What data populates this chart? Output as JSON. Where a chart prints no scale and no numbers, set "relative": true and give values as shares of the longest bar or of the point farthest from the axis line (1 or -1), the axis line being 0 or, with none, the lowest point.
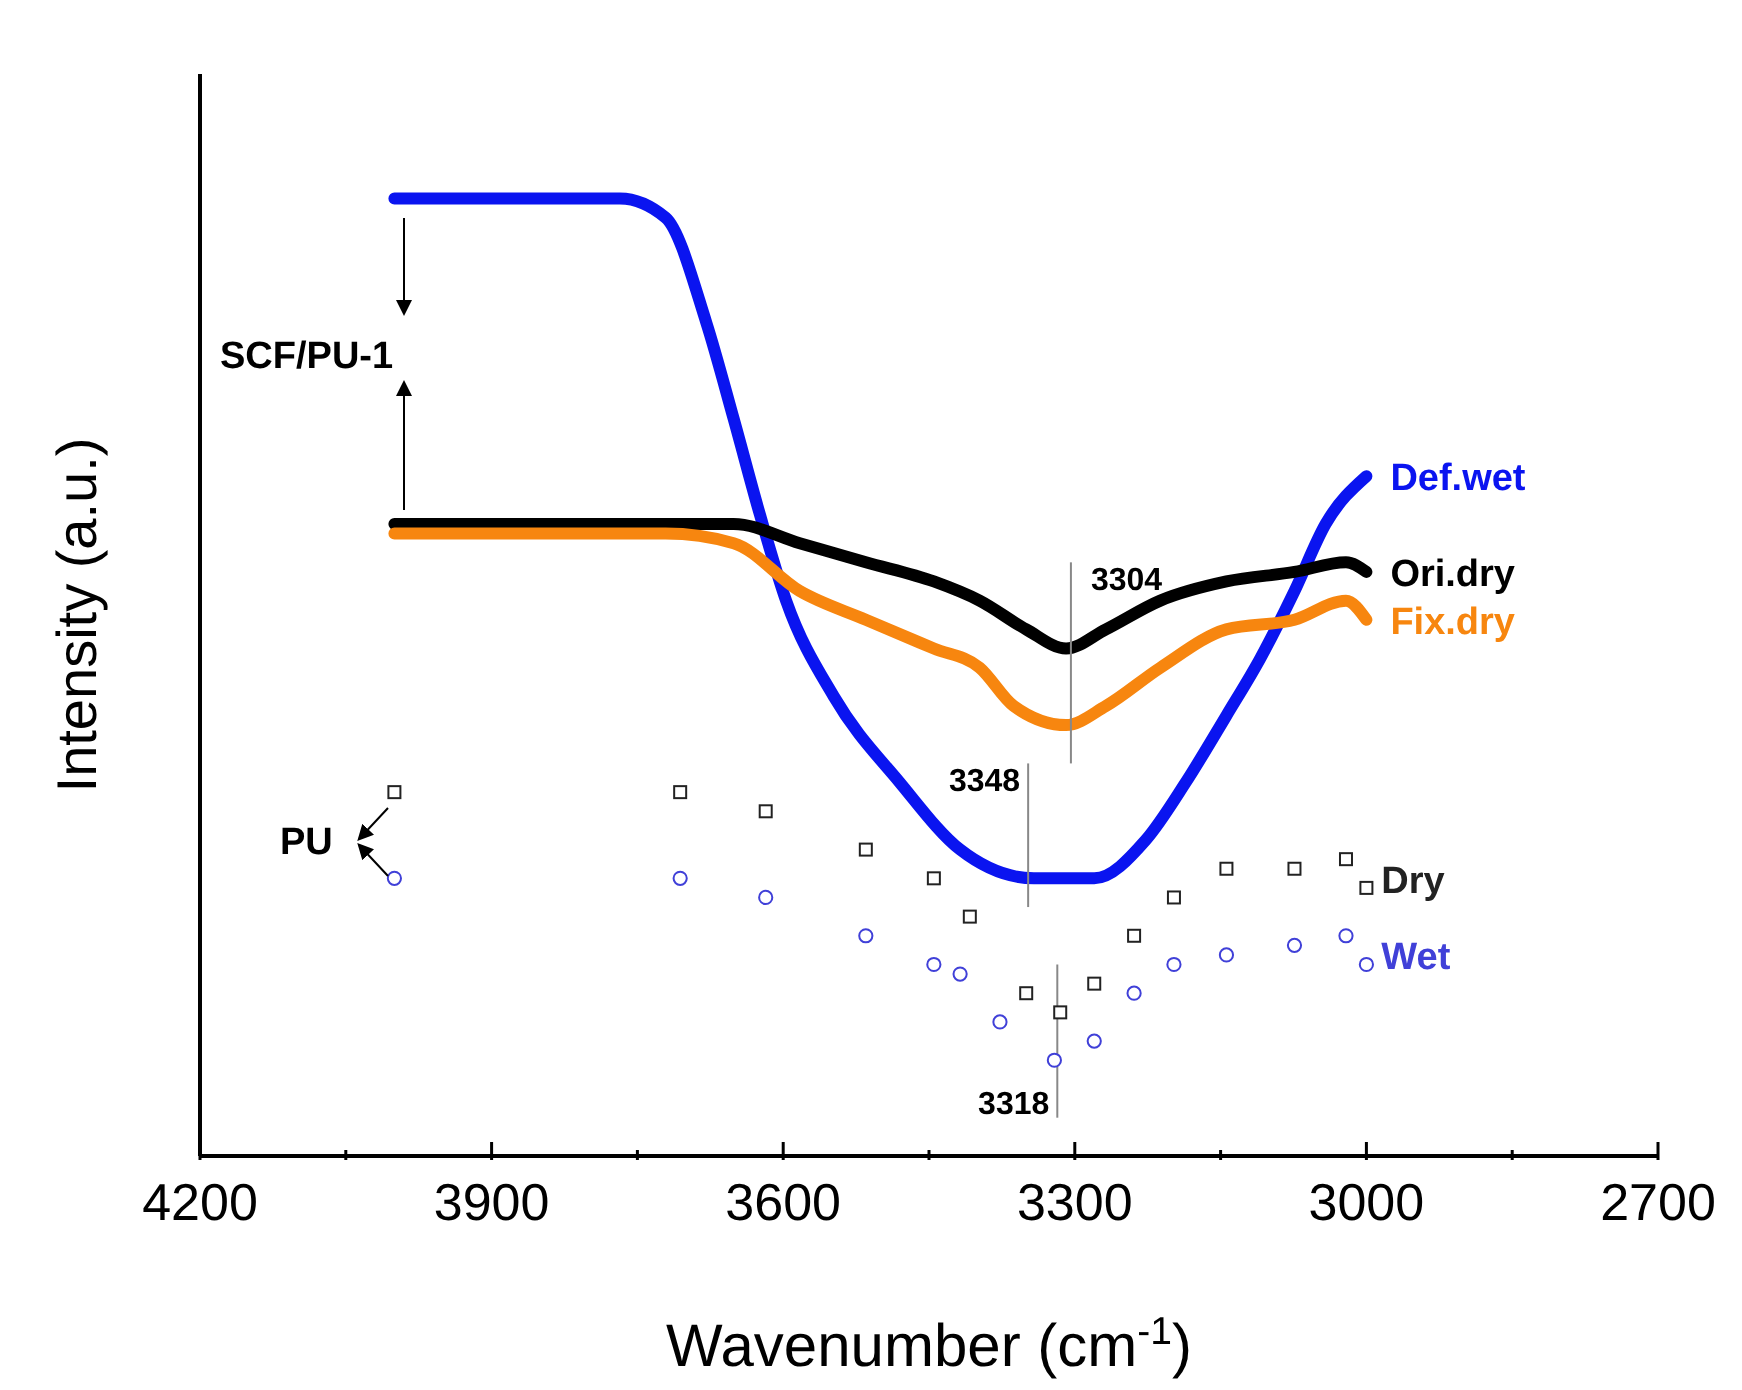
{
  "chart_data": {
    "type": "line",
    "relative": true,
    "xlabel": "Wavenumber (cm$^{-1}$)",
    "ylabel": "Intensity (a.u.)",
    "xlim": [
      4200,
      2700
    ],
    "xticks": [
      4200,
      {
        "value": 4050,
        "label": null
      },
      3900,
      {
        "value": 3750,
        "label": null
      },
      3600,
      {
        "value": 3450,
        "label": null
      },
      3300,
      {
        "value": 3150,
        "label": null
      },
      3000,
      {
        "value": 2850,
        "label": null
      },
      2700
    ],
    "series": [
      {
        "name": "Def.wet",
        "color": "#0a14f0",
        "x": [
          4000,
          3768,
          3721,
          3679,
          3651,
          3624,
          3597,
          3548,
          3480,
          3418,
          3342,
          3280,
          3227,
          3186,
          3144,
          3109,
          3074,
          3042,
          3000
        ],
        "values": [
          1,
          1,
          0.98,
          0.87,
          0.77,
          0.67,
          0.58,
          0.48,
          0.39,
          0.32,
          0.29,
          0.29,
          0.33,
          0.39,
          0.46,
          0.52,
          0.59,
          0.66,
          0.71
        ]
      },
      {
        "name": "Ori.dry",
        "color": "#000000",
        "x": [
          4000,
          3651,
          3583,
          3515,
          3445,
          3398,
          3350,
          3309,
          3268,
          3212,
          3144,
          3074,
          3021,
          3000
        ],
        "values": [
          0.66,
          0.66,
          0.64,
          0.62,
          0.6,
          0.58,
          0.55,
          0.53,
          0.55,
          0.58,
          0.6,
          0.61,
          0.62,
          0.61
        ]
      },
      {
        "name": "Fix.dry",
        "color": "#f7860f",
        "x": [
          4000,
          3721,
          3651,
          3583,
          3515,
          3445,
          3398,
          3363,
          3309,
          3268,
          3212,
          3144,
          3074,
          3021,
          3000
        ],
        "values": [
          0.65,
          0.65,
          0.64,
          0.59,
          0.56,
          0.53,
          0.51,
          0.47,
          0.45,
          0.47,
          0.51,
          0.55,
          0.56,
          0.58,
          0.56
        ]
      },
      {
        "name": "Dry",
        "type": "scatter",
        "marker": "square",
        "color": "#222222",
        "x": [
          4000,
          3706,
          3618,
          3515,
          3445,
          3408,
          3350,
          3315,
          3280,
          3239,
          3198,
          3144,
          3074,
          3021,
          3000
        ],
        "values": [
          0.38,
          0.38,
          0.36,
          0.32,
          0.29,
          0.25,
          0.17,
          0.15,
          0.18,
          0.23,
          0.27,
          0.3,
          0.3,
          0.31,
          0.28
        ]
      },
      {
        "name": "Wet",
        "type": "scatter",
        "marker": "circle",
        "color": "#4040d8",
        "x": [
          4000,
          3706,
          3618,
          3515,
          3445,
          3418,
          3377,
          3321,
          3280,
          3239,
          3198,
          3144,
          3074,
          3021,
          3000
        ],
        "values": [
          0.29,
          0.29,
          0.27,
          0.23,
          0.2,
          0.19,
          0.14,
          0.1,
          0.12,
          0.17,
          0.2,
          0.21,
          0.22,
          0.23,
          0.2
        ]
      }
    ],
    "annotations": [
      {
        "text": "3304",
        "x": 3304,
        "y": 0.53
      },
      {
        "text": "3348",
        "x": 3348,
        "y": 0.29
      },
      {
        "text": "3318",
        "x": 3318,
        "y": 0.1
      },
      "SCF/PU-1",
      "PU"
    ]
  }
}
